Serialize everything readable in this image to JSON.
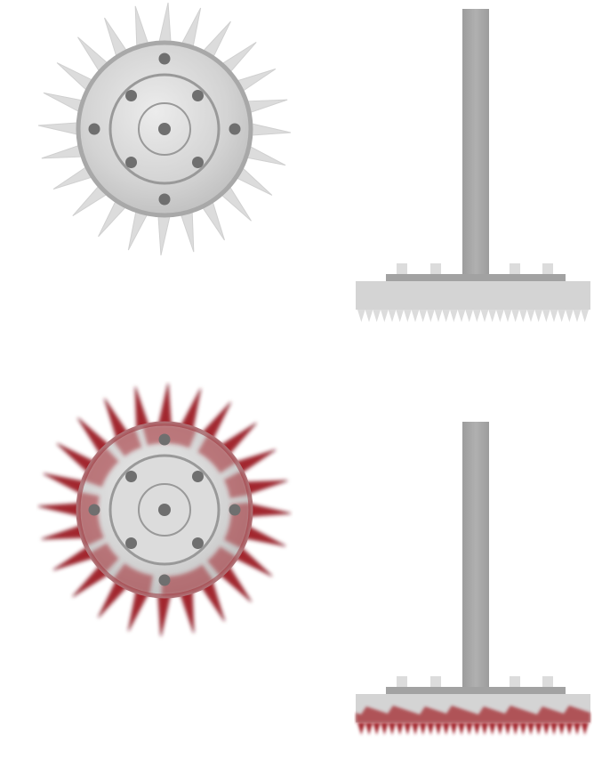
{
  "sprites": [
    {
      "id": "saw-blade-clean",
      "type": "saw-blade",
      "state": "clean",
      "teeth": 24,
      "bolt_holes": 8
    },
    {
      "id": "saw-blade-bloody",
      "type": "saw-blade",
      "state": "bloody",
      "teeth": 24,
      "bolt_holes": 8
    },
    {
      "id": "rake-saw-clean",
      "type": "rake-saw",
      "state": "clean",
      "teeth": 30,
      "studs": 4
    },
    {
      "id": "rake-saw-bloody",
      "type": "rake-saw",
      "state": "bloody",
      "teeth": 30,
      "studs": 4
    }
  ],
  "colors": {
    "background": "#ffffff",
    "metal_light": "#e6e6e6",
    "metal_mid": "#cfcfcf",
    "metal_dark": "#9a9a9a",
    "tooth": "#dcdcdc",
    "bolt": "#6f6f6f",
    "pole": "#a6a6a6",
    "blood": "#a3262f",
    "blood_dark": "#7a1820"
  }
}
